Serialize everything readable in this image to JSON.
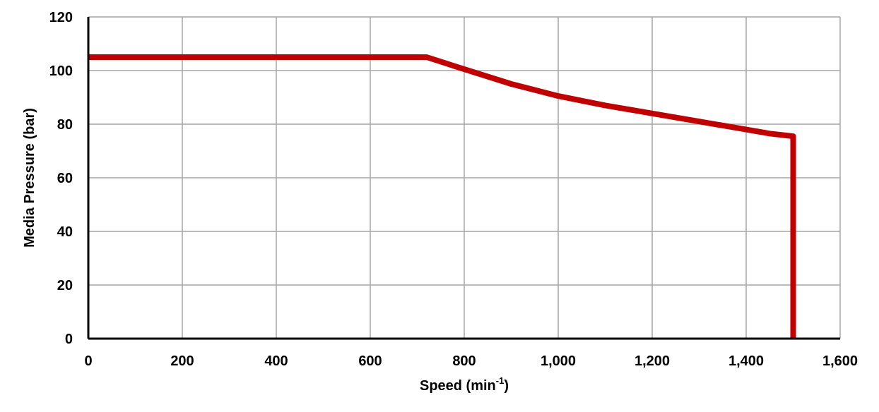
{
  "chart_data": {
    "type": "line",
    "xlabel": "Speed (min",
    "xlabel_sup": "-1",
    "xlabel_close": ")",
    "ylabel": "Media Pressure (bar)",
    "xlim": [
      0,
      1600
    ],
    "ylim": [
      0,
      120
    ],
    "x_ticks": [
      0,
      200,
      400,
      600,
      800,
      1000,
      1200,
      1400,
      1600
    ],
    "x_tick_labels": [
      "0",
      "200",
      "400",
      "600",
      "800",
      "1,000",
      "1,200",
      "1,400",
      "1,600"
    ],
    "y_ticks": [
      0,
      20,
      40,
      60,
      80,
      100,
      120
    ],
    "y_tick_labels": [
      "0",
      "20",
      "40",
      "60",
      "80",
      "100",
      "120"
    ],
    "grid": true,
    "series": [
      {
        "color": "#c00000",
        "x": [
          0,
          720,
          800,
          900,
          1000,
          1100,
          1200,
          1300,
          1400,
          1450,
          1500,
          1500
        ],
        "y": [
          105,
          105,
          100.5,
          95,
          90.5,
          87,
          84,
          81,
          78,
          76.5,
          75.5,
          0
        ]
      }
    ]
  }
}
